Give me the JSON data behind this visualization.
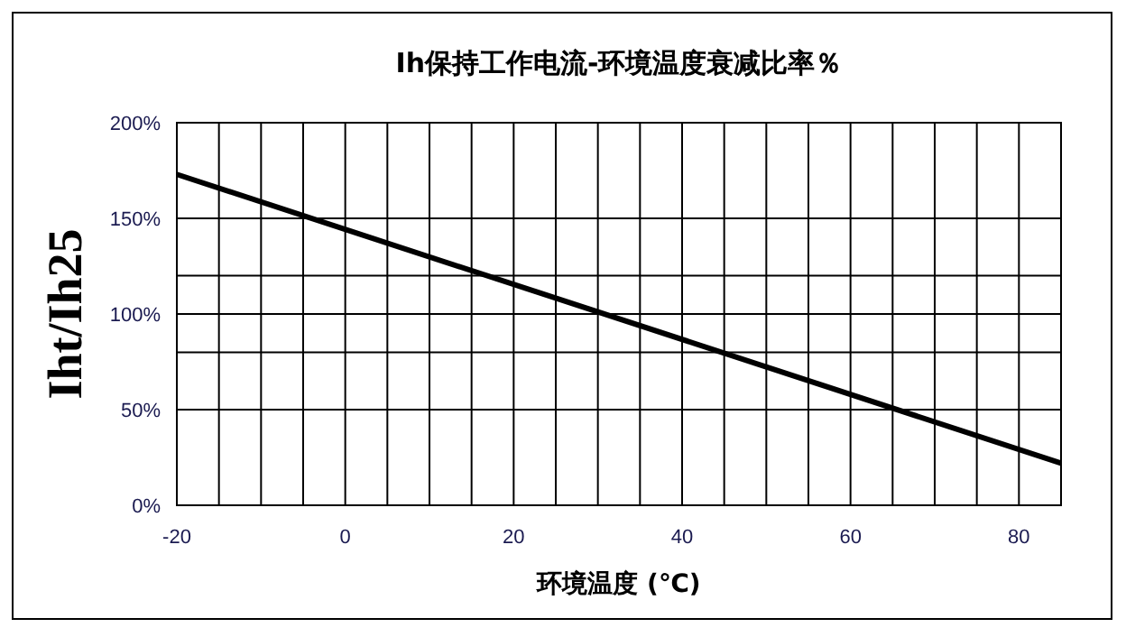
{
  "chart_data": {
    "type": "line",
    "title": "Ih保持工作电流-环境温度衰减比率％",
    "xlabel": "环境温度 (℃)",
    "ylabel": "Iht/Ih25",
    "x": [
      -20,
      85
    ],
    "series": [
      {
        "color": "#000000",
        "values": [
          173,
          22
        ]
      }
    ],
    "xlim": [
      -20,
      85
    ],
    "xticks": [
      -20,
      {
        "value": -15,
        "label": null
      },
      {
        "value": -10,
        "label": null
      },
      {
        "value": -5,
        "label": null
      },
      0,
      {
        "value": 5,
        "label": null
      },
      {
        "value": 10,
        "label": null
      },
      {
        "value": 15,
        "label": null
      },
      20,
      {
        "value": 25,
        "label": null
      },
      {
        "value": 30,
        "label": null
      },
      {
        "value": 35,
        "label": null
      },
      40,
      {
        "value": 45,
        "label": null
      },
      {
        "value": 50,
        "label": null
      },
      {
        "value": 55,
        "label": null
      },
      60,
      {
        "value": 65,
        "label": null
      },
      {
        "value": 70,
        "label": null
      },
      {
        "value": 75,
        "label": null
      },
      80,
      {
        "value": 85,
        "label": null
      }
    ],
    "ylim": [
      0,
      200
    ],
    "yticks": [
      {
        "value": 0,
        "label": "0%"
      },
      {
        "value": 50,
        "label": "50%"
      },
      {
        "value": 80,
        "label": null
      },
      {
        "value": 100,
        "label": "100%"
      },
      {
        "value": 120,
        "label": null
      },
      {
        "value": 150,
        "label": "150%"
      },
      {
        "value": 200,
        "label": "200%"
      }
    ],
    "grid": true,
    "line_style": "solid",
    "marker": "none"
  }
}
